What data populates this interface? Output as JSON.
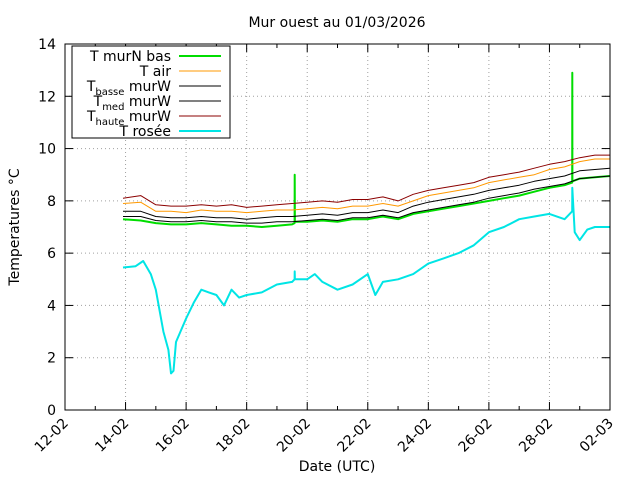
{
  "chart_data": {
    "type": "line",
    "title": "Mur ouest au 01/03/2026",
    "xlabel": "Date (UTC)",
    "ylabel": "Temperatures °C",
    "x_unit": "date",
    "xlim": [
      "2026-02-12",
      "2026-03-02"
    ],
    "ylim": [
      0,
      14
    ],
    "yticks": [
      0,
      2,
      4,
      6,
      8,
      10,
      12,
      14
    ],
    "xticks": [
      "2026-02-12",
      "2026-02-14",
      "2026-02-16",
      "2026-02-18",
      "2026-02-20",
      "2026-02-22",
      "2026-02-24",
      "2026-02-26",
      "2026-02-28",
      "2026-03-02"
    ],
    "xtick_labels": [
      "12-02",
      "14-02",
      "16-02",
      "18-02",
      "20-02",
      "22-02",
      "24-02",
      "26-02",
      "28-02",
      "02-03"
    ],
    "grid": true,
    "legend_position": "top-left",
    "series": [
      {
        "name": "T murN bas",
        "legend": {
          "main": "T murN bas"
        },
        "color": "#00dd00",
        "x": [
          "2026-02-13T22:00",
          "2026-02-14T12:00",
          "2026-02-15T00:00",
          "2026-02-15T12:00",
          "2026-02-16T00:00",
          "2026-02-16T12:00",
          "2026-02-17T00:00",
          "2026-02-17T12:00",
          "2026-02-18T00:00",
          "2026-02-18T12:00",
          "2026-02-19T00:00",
          "2026-02-19T12:00",
          "2026-02-19T14:00",
          "2026-02-19T14:06",
          "2026-02-19T14:12",
          "2026-02-20T00:00",
          "2026-02-20T12:00",
          "2026-02-21T00:00",
          "2026-02-21T12:00",
          "2026-02-22T00:00",
          "2026-02-22T12:00",
          "2026-02-23T00:00",
          "2026-02-23T12:00",
          "2026-02-24T00:00",
          "2026-02-24T12:00",
          "2026-02-25T00:00",
          "2026-02-25T12:00",
          "2026-02-26T00:00",
          "2026-02-26T12:00",
          "2026-02-27T00:00",
          "2026-02-27T12:00",
          "2026-02-28T00:00",
          "2026-02-28T12:00",
          "2026-02-28T18:00",
          "2026-02-28T18:06",
          "2026-02-28T18:12",
          "2026-03-01T00:00",
          "2026-03-01T12:00",
          "2026-03-02T00:00"
        ],
        "y": [
          7.3,
          7.25,
          7.15,
          7.1,
          7.1,
          7.15,
          7.1,
          7.05,
          7.05,
          7.0,
          7.05,
          7.1,
          7.15,
          9.0,
          7.2,
          7.2,
          7.25,
          7.2,
          7.3,
          7.3,
          7.4,
          7.3,
          7.5,
          7.6,
          7.7,
          7.8,
          7.9,
          8.0,
          8.1,
          8.2,
          8.35,
          8.5,
          8.6,
          8.7,
          12.9,
          8.75,
          8.85,
          8.9,
          8.95
        ]
      },
      {
        "name": "T air",
        "legend": {
          "main": "T air"
        },
        "color": "#ff9900",
        "x": [
          "2026-02-13T22:00",
          "2026-02-14T12:00",
          "2026-02-15T00:00",
          "2026-02-15T12:00",
          "2026-02-16T00:00",
          "2026-02-16T12:00",
          "2026-02-17T00:00",
          "2026-02-17T12:00",
          "2026-02-18T00:00",
          "2026-02-18T12:00",
          "2026-02-19T00:00",
          "2026-02-19T12:00",
          "2026-02-20T00:00",
          "2026-02-20T12:00",
          "2026-02-21T00:00",
          "2026-02-21T12:00",
          "2026-02-22T00:00",
          "2026-02-22T12:00",
          "2026-02-23T00:00",
          "2026-02-23T12:00",
          "2026-02-24T00:00",
          "2026-02-24T12:00",
          "2026-02-25T00:00",
          "2026-02-25T12:00",
          "2026-02-26T00:00",
          "2026-02-26T12:00",
          "2026-02-27T00:00",
          "2026-02-27T12:00",
          "2026-02-28T00:00",
          "2026-02-28T12:00",
          "2026-03-01T00:00",
          "2026-03-01T12:00",
          "2026-03-02T00:00"
        ],
        "y": [
          7.9,
          7.95,
          7.6,
          7.6,
          7.55,
          7.65,
          7.6,
          7.6,
          7.55,
          7.6,
          7.65,
          7.65,
          7.7,
          7.75,
          7.7,
          7.8,
          7.8,
          7.9,
          7.8,
          8.0,
          8.2,
          8.3,
          8.4,
          8.5,
          8.7,
          8.8,
          8.9,
          9.0,
          9.2,
          9.3,
          9.5,
          9.6,
          9.6
        ]
      },
      {
        "name": "T basse murW",
        "legend": {
          "main": "T",
          "sub": "basse",
          "rest": " murW"
        },
        "color": "#000000",
        "x": [
          "2026-02-13T22:00",
          "2026-02-14T12:00",
          "2026-02-15T00:00",
          "2026-02-15T12:00",
          "2026-02-16T00:00",
          "2026-02-16T12:00",
          "2026-02-17T00:00",
          "2026-02-17T12:00",
          "2026-02-18T00:00",
          "2026-02-18T12:00",
          "2026-02-19T00:00",
          "2026-02-19T12:00",
          "2026-02-20T00:00",
          "2026-02-20T12:00",
          "2026-02-21T00:00",
          "2026-02-21T12:00",
          "2026-02-22T00:00",
          "2026-02-22T12:00",
          "2026-02-23T00:00",
          "2026-02-23T12:00",
          "2026-02-24T00:00",
          "2026-02-24T12:00",
          "2026-02-25T00:00",
          "2026-02-25T12:00",
          "2026-02-26T00:00",
          "2026-02-26T12:00",
          "2026-02-27T00:00",
          "2026-02-27T12:00",
          "2026-02-28T00:00",
          "2026-02-28T12:00",
          "2026-03-01T00:00",
          "2026-03-01T12:00",
          "2026-03-02T00:00"
        ],
        "y": [
          7.4,
          7.4,
          7.25,
          7.2,
          7.2,
          7.25,
          7.2,
          7.2,
          7.15,
          7.15,
          7.2,
          7.2,
          7.25,
          7.3,
          7.25,
          7.35,
          7.35,
          7.45,
          7.35,
          7.55,
          7.65,
          7.75,
          7.85,
          7.95,
          8.1,
          8.2,
          8.3,
          8.45,
          8.55,
          8.65,
          8.85,
          8.9,
          8.95
        ]
      },
      {
        "name": "T med murW",
        "legend": {
          "main": "T",
          "sub": "med",
          "rest": " murW"
        },
        "color": "#000000",
        "x": [
          "2026-02-13T22:00",
          "2026-02-14T12:00",
          "2026-02-15T00:00",
          "2026-02-15T12:00",
          "2026-02-16T00:00",
          "2026-02-16T12:00",
          "2026-02-17T00:00",
          "2026-02-17T12:00",
          "2026-02-18T00:00",
          "2026-02-18T12:00",
          "2026-02-19T00:00",
          "2026-02-19T12:00",
          "2026-02-20T00:00",
          "2026-02-20T12:00",
          "2026-02-21T00:00",
          "2026-02-21T12:00",
          "2026-02-22T00:00",
          "2026-02-22T12:00",
          "2026-02-23T00:00",
          "2026-02-23T12:00",
          "2026-02-24T00:00",
          "2026-02-24T12:00",
          "2026-02-25T00:00",
          "2026-02-25T12:00",
          "2026-02-26T00:00",
          "2026-02-26T12:00",
          "2026-02-27T00:00",
          "2026-02-27T12:00",
          "2026-02-28T00:00",
          "2026-02-28T12:00",
          "2026-03-01T00:00",
          "2026-03-01T12:00",
          "2026-03-02T00:00"
        ],
        "y": [
          7.6,
          7.6,
          7.4,
          7.35,
          7.35,
          7.4,
          7.35,
          7.35,
          7.3,
          7.35,
          7.4,
          7.4,
          7.45,
          7.5,
          7.45,
          7.55,
          7.55,
          7.65,
          7.55,
          7.8,
          7.95,
          8.05,
          8.15,
          8.25,
          8.4,
          8.5,
          8.6,
          8.75,
          8.85,
          8.95,
          9.15,
          9.2,
          9.25
        ]
      },
      {
        "name": "T haute murW",
        "legend": {
          "main": "T",
          "sub": "haute",
          "rest": " murW"
        },
        "color": "#8b0000",
        "x": [
          "2026-02-13T22:00",
          "2026-02-14T12:00",
          "2026-02-15T00:00",
          "2026-02-15T12:00",
          "2026-02-16T00:00",
          "2026-02-16T12:00",
          "2026-02-17T00:00",
          "2026-02-17T12:00",
          "2026-02-18T00:00",
          "2026-02-18T12:00",
          "2026-02-19T00:00",
          "2026-02-19T12:00",
          "2026-02-20T00:00",
          "2026-02-20T12:00",
          "2026-02-21T00:00",
          "2026-02-21T12:00",
          "2026-02-22T00:00",
          "2026-02-22T12:00",
          "2026-02-23T00:00",
          "2026-02-23T12:00",
          "2026-02-24T00:00",
          "2026-02-24T12:00",
          "2026-02-25T00:00",
          "2026-02-25T12:00",
          "2026-02-26T00:00",
          "2026-02-26T12:00",
          "2026-02-27T00:00",
          "2026-02-27T12:00",
          "2026-02-28T00:00",
          "2026-02-28T12:00",
          "2026-03-01T00:00",
          "2026-03-01T12:00",
          "2026-03-02T00:00"
        ],
        "y": [
          8.1,
          8.2,
          7.85,
          7.8,
          7.8,
          7.85,
          7.8,
          7.85,
          7.75,
          7.8,
          7.85,
          7.9,
          7.95,
          8.0,
          7.95,
          8.05,
          8.05,
          8.15,
          8.0,
          8.25,
          8.4,
          8.5,
          8.6,
          8.7,
          8.9,
          9.0,
          9.1,
          9.25,
          9.4,
          9.5,
          9.65,
          9.75,
          9.75
        ]
      },
      {
        "name": "T rosée",
        "legend": {
          "main": "T rosée"
        },
        "color": "#00e5e5",
        "x": [
          "2026-02-13T22:00",
          "2026-02-14T08:00",
          "2026-02-14T14:00",
          "2026-02-14T20:00",
          "2026-02-15T00:00",
          "2026-02-15T06:00",
          "2026-02-15T10:00",
          "2026-02-15T12:00",
          "2026-02-15T14:00",
          "2026-02-15T16:00",
          "2026-02-16T00:00",
          "2026-02-16T06:00",
          "2026-02-16T12:00",
          "2026-02-16T18:00",
          "2026-02-17T00:00",
          "2026-02-17T06:00",
          "2026-02-17T12:00",
          "2026-02-17T18:00",
          "2026-02-18T00:00",
          "2026-02-18T12:00",
          "2026-02-19T00:00",
          "2026-02-19T12:00",
          "2026-02-19T14:00",
          "2026-02-19T14:06",
          "2026-02-19T14:12",
          "2026-02-20T00:00",
          "2026-02-20T06:00",
          "2026-02-20T12:00",
          "2026-02-21T00:00",
          "2026-02-21T12:00",
          "2026-02-22T00:00",
          "2026-02-22T06:00",
          "2026-02-22T12:00",
          "2026-02-23T00:00",
          "2026-02-23T12:00",
          "2026-02-24T00:00",
          "2026-02-24T12:00",
          "2026-02-25T00:00",
          "2026-02-25T12:00",
          "2026-02-26T00:00",
          "2026-02-26T12:00",
          "2026-02-27T00:00",
          "2026-02-27T12:00",
          "2026-02-28T00:00",
          "2026-02-28T12:00",
          "2026-02-28T18:00",
          "2026-02-28T18:06",
          "2026-02-28T20:00",
          "2026-03-01T00:00",
          "2026-03-01T06:00",
          "2026-03-01T12:00",
          "2026-03-02T00:00"
        ],
        "y": [
          5.45,
          5.5,
          5.7,
          5.2,
          4.6,
          3.0,
          2.3,
          1.4,
          1.5,
          2.6,
          3.5,
          4.1,
          4.6,
          4.5,
          4.4,
          4.0,
          4.6,
          4.3,
          4.4,
          4.5,
          4.8,
          4.9,
          5.0,
          5.3,
          5.0,
          5.0,
          5.2,
          4.9,
          4.6,
          4.8,
          5.2,
          4.4,
          4.9,
          5.0,
          5.2,
          5.6,
          5.8,
          6.0,
          6.3,
          6.8,
          7.0,
          7.3,
          7.4,
          7.5,
          7.3,
          7.6,
          8.5,
          6.8,
          6.5,
          6.9,
          7.0,
          7.0
        ]
      }
    ]
  }
}
